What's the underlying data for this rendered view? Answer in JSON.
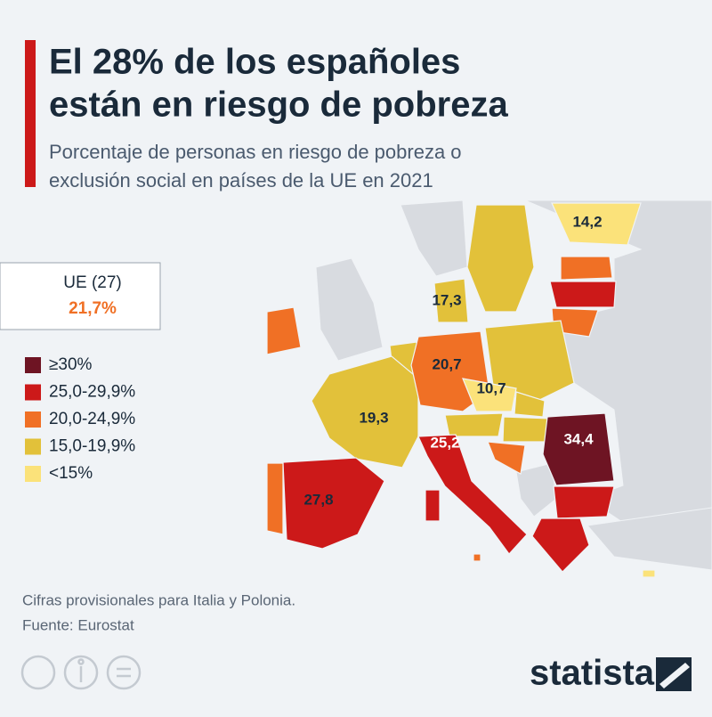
{
  "header": {
    "title_lines": [
      "El 28% de los españoles",
      "están en riesgo de pobreza"
    ],
    "subtitle_lines": [
      "Porcentaje de personas en riesgo de pobreza o",
      "exclusión social en países de la UE en 2021"
    ]
  },
  "eu_box": {
    "label": "UE (27)",
    "value": "21,7%"
  },
  "legend": [
    {
      "label": "≥30%",
      "color": "#6e1423"
    },
    {
      "label": "25,0-29,9%",
      "color": "#cc1919"
    },
    {
      "label": "20,0-24,9%",
      "color": "#f07025"
    },
    {
      "label": "15,0-19,9%",
      "color": "#e2c13a"
    },
    {
      "label": "<15%",
      "color": "#fbe27a"
    }
  ],
  "map": {
    "labels": [
      "14,2",
      "17,3",
      "20,7",
      "10,7",
      "19,3",
      "25,2",
      "34,4",
      "27,8"
    ]
  },
  "footer": {
    "note": "Cifras provisionales para Italia y Polonia.",
    "source": "Fuente: Eurostat",
    "brand": "statista"
  }
}
